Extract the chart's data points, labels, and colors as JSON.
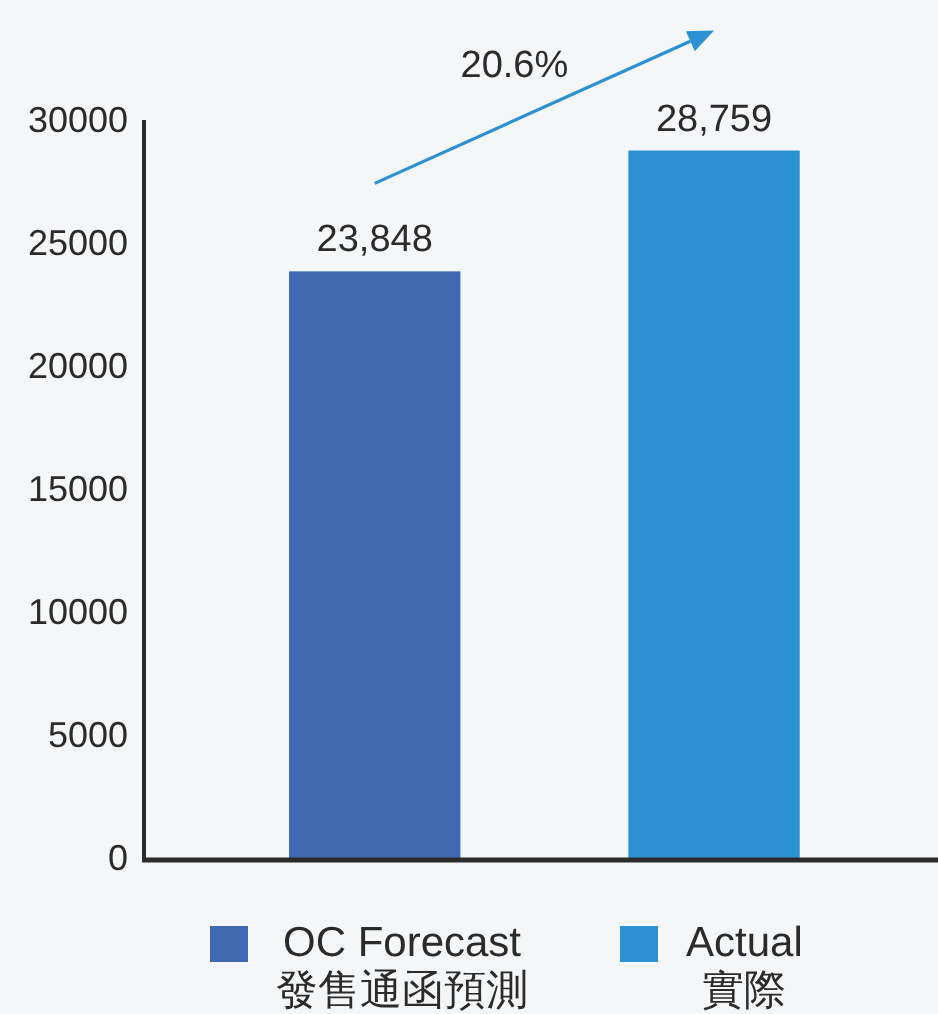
{
  "chart_data": {
    "type": "bar",
    "categories": [
      null,
      null
    ],
    "series": [
      {
        "name": "OC Forecast\n發售通函預測",
        "color": "#4169b2",
        "values": [
          23848,
          null
        ],
        "value_labels": [
          "23,848",
          null
        ]
      },
      {
        "name": "Actual\n實際",
        "color": "#2b91d3",
        "values": [
          null,
          28759
        ],
        "value_labels": [
          null,
          "28,759"
        ]
      }
    ],
    "ylim": [
      0,
      30000
    ],
    "yticks": [
      0,
      5000,
      10000,
      15000,
      20000,
      25000,
      30000
    ],
    "legend": "bottom",
    "annotations": [
      "20.6%"
    ]
  }
}
